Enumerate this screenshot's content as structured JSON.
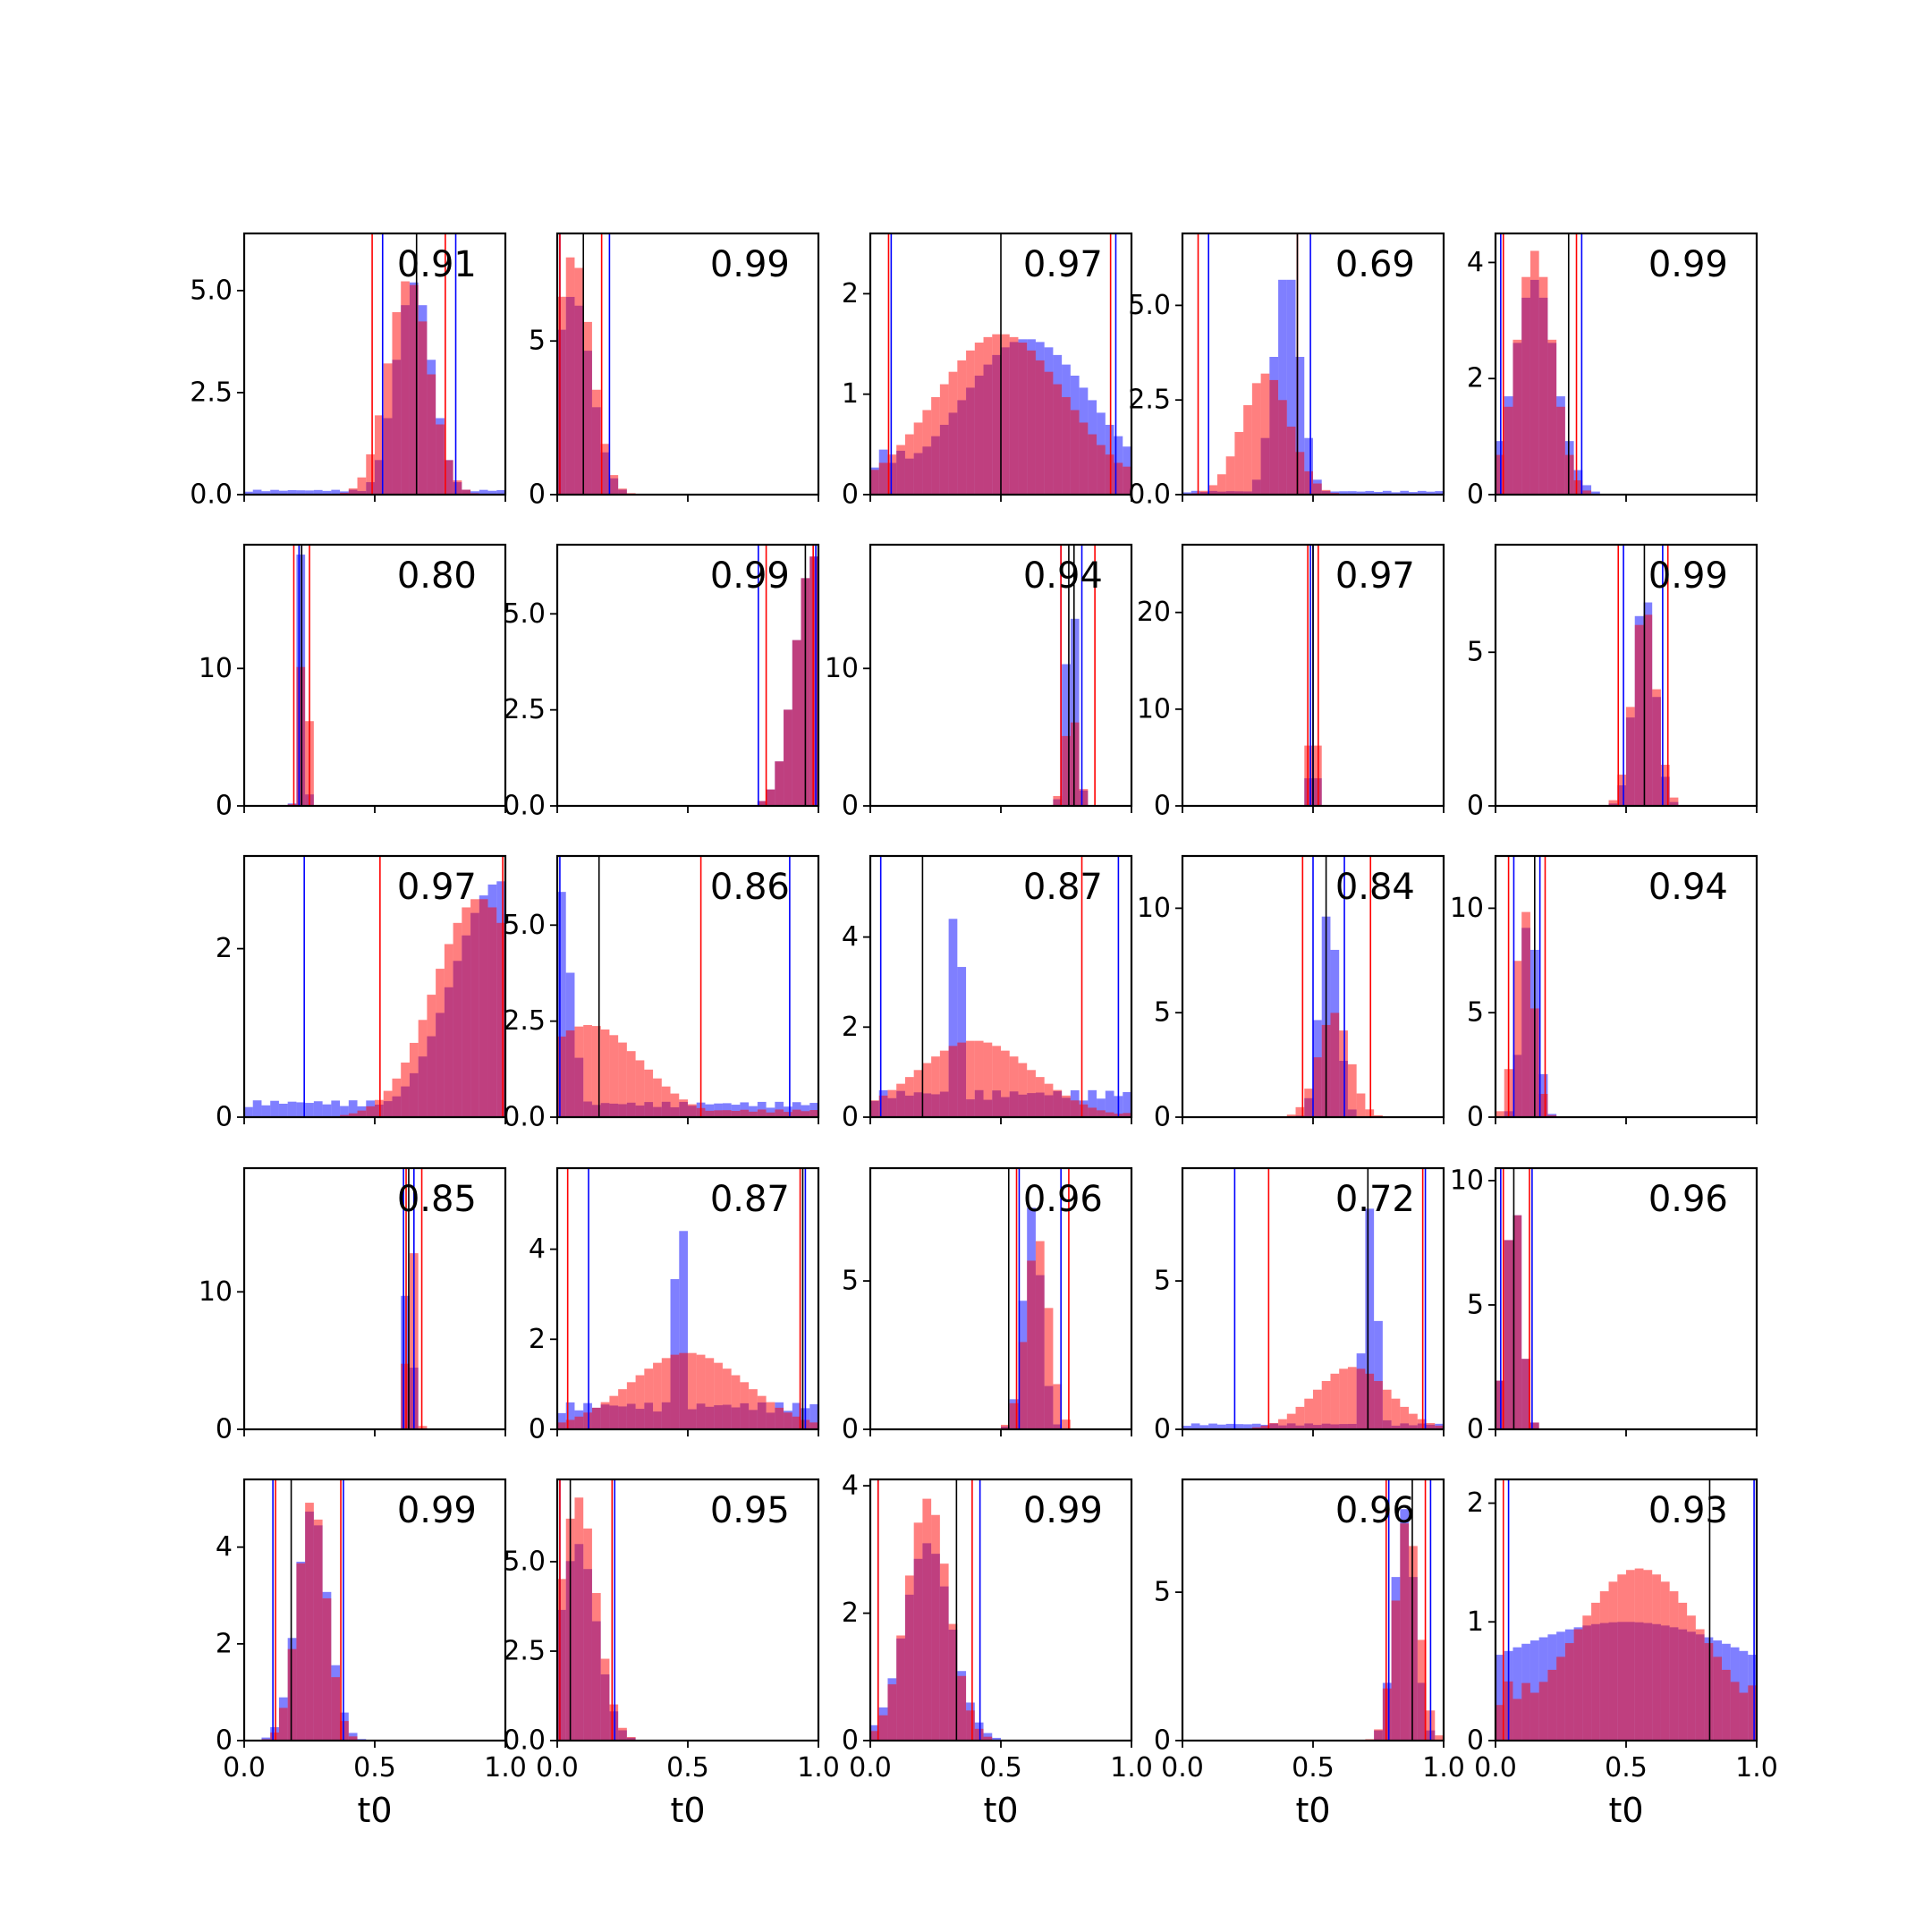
{
  "colors": {
    "blue": "#0000ff",
    "red": "#ff0000",
    "black": "#000000"
  },
  "chart_data": {
    "type": "histogram-grid",
    "rows": 5,
    "cols": 5,
    "xlabel": "t0",
    "x_range": [
      0,
      1
    ],
    "x_tick_labels": [
      "0.0",
      "0.5",
      "1.0"
    ],
    "x_tick_values": [
      0,
      0.5,
      1
    ],
    "grid": false,
    "legend": "none",
    "panels": [
      {
        "label": "0.91",
        "ylim": [
          0,
          6.4
        ],
        "yticks": [
          0,
          2.5,
          5.0
        ],
        "ytick_labels": [
          "0.0",
          "2.5",
          "5.0"
        ],
        "vlines": {
          "blue": [
            0.53,
            0.81
          ],
          "red": [
            0.49,
            0.77
          ],
          "black": [
            0.66
          ]
        },
        "blue": {
          "center": 0.65,
          "spread": 0.07,
          "peak": 5.2,
          "floor": 0.12
        },
        "red": {
          "center": 0.63,
          "spread": 0.08,
          "peak": 5.3,
          "floor": 0.0
        }
      },
      {
        "label": "0.99",
        "ylim": [
          0,
          8.5
        ],
        "yticks": [
          0,
          5
        ],
        "ytick_labels": [
          "0",
          "5"
        ],
        "vlines": {
          "blue": [
            0.01,
            0.2
          ],
          "red": [
            0.01,
            0.17
          ],
          "black": [
            0.1
          ]
        },
        "blue": {
          "center": 0.06,
          "spread": 0.07,
          "peak": 6.5,
          "floor": 0.0
        },
        "red": {
          "center": 0.06,
          "spread": 0.07,
          "peak": 7.8,
          "floor": 0.0
        }
      },
      {
        "label": "0.97",
        "ylim": [
          0,
          2.6
        ],
        "yticks": [
          0,
          1,
          2
        ],
        "ytick_labels": [
          "0",
          "1",
          "2"
        ],
        "vlines": {
          "blue": [
            0.08,
            0.94
          ],
          "red": [
            0.07,
            0.92
          ],
          "black": [
            0.5
          ]
        },
        "blue": {
          "center": 0.6,
          "spread": 0.25,
          "peak": 1.55,
          "floor": 0.45
        },
        "red": {
          "center": 0.5,
          "spread": 0.25,
          "peak": 1.6,
          "floor": 0.3
        }
      },
      {
        "label": "0.69",
        "ylim": [
          0,
          6.9
        ],
        "yticks": [
          0,
          2.5,
          5.0
        ],
        "ytick_labels": [
          "0.0",
          "2.5",
          "5.0"
        ],
        "vlines": {
          "blue": [
            0.1,
            0.49
          ],
          "red": [
            0.06,
            0.44
          ],
          "black": [
            0.44
          ]
        },
        "blue": {
          "center": 0.4,
          "spread": 0.05,
          "peak": 6.0,
          "floor": 0.1
        },
        "red": {
          "center": 0.32,
          "spread": 0.09,
          "peak": 3.2,
          "floor": 0.0
        }
      },
      {
        "label": "0.99",
        "ylim": [
          0,
          4.5
        ],
        "yticks": [
          0,
          2,
          4
        ],
        "ytick_labels": [
          "0",
          "2",
          "4"
        ],
        "vlines": {
          "blue": [
            0.02,
            0.33
          ],
          "red": [
            0.03,
            0.31
          ],
          "black": [
            0.28
          ]
        },
        "blue": {
          "center": 0.15,
          "spread": 0.08,
          "peak": 3.7,
          "floor": 0.0
        },
        "red": {
          "center": 0.15,
          "spread": 0.07,
          "peak": 4.2,
          "floor": 0.0
        }
      },
      {
        "label": "0.80",
        "ylim": [
          0,
          19
        ],
        "yticks": [
          0,
          10
        ],
        "ytick_labels": [
          "0",
          "10"
        ],
        "vlines": {
          "blue": [
            0.21,
            0.22
          ],
          "red": [
            0.19,
            0.25
          ],
          "black": [
            0.22
          ]
        },
        "blue": {
          "center": 0.22,
          "spread": 0.012,
          "peak": 19,
          "floor": 0.0
        },
        "red": {
          "center": 0.23,
          "spread": 0.015,
          "peak": 15,
          "floor": 0.0
        }
      },
      {
        "label": "0.99",
        "ylim": [
          0,
          6.8
        ],
        "yticks": [
          0,
          2.5,
          5.0
        ],
        "ytick_labels": [
          "0.0",
          "2.5",
          "5.0"
        ],
        "vlines": {
          "blue": [
            0.77,
            0.99
          ],
          "red": [
            0.8,
            0.98
          ],
          "black": [
            0.95
          ]
        },
        "blue": {
          "center": 0.98,
          "spread": 0.07,
          "peak": 6.5,
          "floor": 0.0
        },
        "red": {
          "center": 0.98,
          "spread": 0.07,
          "peak": 6.5,
          "floor": 0.0
        }
      },
      {
        "label": "0.94",
        "ylim": [
          0,
          19
        ],
        "yticks": [
          0,
          10
        ],
        "ytick_labels": [
          "0",
          "10"
        ],
        "vlines": {
          "blue": [
            0.73,
            0.81
          ],
          "red": [
            0.73,
            0.86
          ],
          "black": [
            0.76,
            0.78
          ]
        },
        "blue": {
          "center": 0.77,
          "spread": 0.02,
          "peak": 17,
          "floor": 0.0
        },
        "red": {
          "center": 0.77,
          "spread": 0.025,
          "peak": 7,
          "floor": 0.0
        }
      },
      {
        "label": "0.97",
        "ylim": [
          0,
          27
        ],
        "yticks": [
          0,
          10,
          20
        ],
        "ytick_labels": [
          "0",
          "10",
          "20"
        ],
        "vlines": {
          "blue": [
            0.49,
            0.5
          ],
          "red": [
            0.48,
            0.52
          ],
          "black": [
            0.5
          ]
        },
        "blue": {
          "center": 0.5,
          "spread": 0.008,
          "peak": 25,
          "floor": 0.0
        },
        "red": {
          "center": 0.5,
          "spread": 0.01,
          "peak": 25,
          "floor": 0.0
        }
      },
      {
        "label": "0.99",
        "ylim": [
          0,
          8.5
        ],
        "yticks": [
          0,
          5
        ],
        "ytick_labels": [
          "0",
          "5"
        ],
        "vlines": {
          "blue": [
            0.49,
            0.64
          ],
          "red": [
            0.47,
            0.66
          ],
          "black": [
            0.57
          ]
        },
        "blue": {
          "center": 0.57,
          "spread": 0.04,
          "peak": 7.0,
          "floor": 0.0
        },
        "red": {
          "center": 0.57,
          "spread": 0.045,
          "peak": 6.5,
          "floor": 0.0
        }
      },
      {
        "label": "0.97",
        "ylim": [
          0,
          3.1
        ],
        "yticks": [
          0,
          2
        ],
        "ytick_labels": [
          "0",
          "2"
        ],
        "vlines": {
          "blue": [
            0.23,
            1.0
          ],
          "red": [
            0.52,
            0.99
          ],
          "black": [
            1.0
          ]
        },
        "blue": {
          "center": 0.98,
          "spread": 0.18,
          "peak": 2.8,
          "floor": 0.2
        },
        "red": {
          "center": 0.9,
          "spread": 0.17,
          "peak": 2.6,
          "floor": 0.0
        }
      },
      {
        "label": "0.86",
        "ylim": [
          0,
          6.8
        ],
        "yticks": [
          0,
          2.5,
          5.0
        ],
        "ytick_labels": [
          "0.0",
          "2.5",
          "5.0"
        ],
        "vlines": {
          "blue": [
            0.01,
            0.89
          ],
          "red": [
            0.55
          ],
          "black": [
            0.16
          ]
        },
        "blue": {
          "center": 0.0,
          "spread": 0.05,
          "peak": 6.2,
          "floor": 0.4
        },
        "red": {
          "center": 0.12,
          "spread": 0.2,
          "peak": 2.4,
          "floor": 0.2
        }
      },
      {
        "label": "0.87",
        "ylim": [
          0,
          5.8
        ],
        "yticks": [
          0,
          2,
          4
        ],
        "ytick_labels": [
          "0",
          "2",
          "4"
        ],
        "vlines": {
          "blue": [
            0.04,
            0.95
          ],
          "red": [
            0.81
          ],
          "black": [
            0.2
          ]
        },
        "blue": {
          "center": 0.33,
          "spread": 0.02,
          "peak": 5.5,
          "floor": 0.6
        },
        "red": {
          "center": 0.4,
          "spread": 0.22,
          "peak": 1.7,
          "floor": 0.1
        }
      },
      {
        "label": "0.84",
        "ylim": [
          0,
          12.5
        ],
        "yticks": [
          0,
          5,
          10
        ],
        "ytick_labels": [
          "0",
          "5",
          "10"
        ],
        "vlines": {
          "blue": [
            0.5,
            0.62
          ],
          "red": [
            0.46,
            0.72
          ],
          "black": [
            0.55
          ]
        },
        "blue": {
          "center": 0.56,
          "spread": 0.035,
          "peak": 10,
          "floor": 0.0
        },
        "red": {
          "center": 0.58,
          "spread": 0.06,
          "peak": 5,
          "floor": 0.0
        }
      },
      {
        "label": "0.94",
        "ylim": [
          0,
          12.5
        ],
        "yticks": [
          0,
          5,
          10
        ],
        "ytick_labels": [
          "0",
          "5",
          "10"
        ],
        "vlines": {
          "blue": [
            0.07,
            0.17
          ],
          "red": [
            0.05,
            0.19
          ],
          "black": [
            0.15
          ]
        },
        "blue": {
          "center": 0.13,
          "spread": 0.03,
          "peak": 10,
          "floor": 0.0
        },
        "red": {
          "center": 0.11,
          "spread": 0.035,
          "peak": 10,
          "floor": 0.0
        }
      },
      {
        "label": "0.85",
        "ylim": [
          0,
          19
        ],
        "yticks": [
          0,
          10
        ],
        "ytick_labels": [
          "0",
          "10"
        ],
        "vlines": {
          "blue": [
            0.61,
            0.65
          ],
          "red": [
            0.62,
            0.68
          ],
          "black": [
            0.63
          ]
        },
        "blue": {
          "center": 0.63,
          "spread": 0.012,
          "peak": 18,
          "floor": 0.0
        },
        "red": {
          "center": 0.64,
          "spread": 0.015,
          "peak": 16,
          "floor": 0.0
        }
      },
      {
        "label": "0.87",
        "ylim": [
          0,
          5.8
        ],
        "yticks": [
          0,
          2,
          4
        ],
        "ytick_labels": [
          "0",
          "2",
          "4"
        ],
        "vlines": {
          "blue": [
            0.12,
            0.95
          ],
          "red": [
            0.04,
            0.93
          ],
          "black": [
            0.94
          ]
        },
        "blue": {
          "center": 0.47,
          "spread": 0.02,
          "peak": 5.5,
          "floor": 0.6
        },
        "red": {
          "center": 0.5,
          "spread": 0.22,
          "peak": 1.7,
          "floor": 0.1
        }
      },
      {
        "label": "0.96",
        "ylim": [
          0,
          8.8
        ],
        "yticks": [
          0,
          5
        ],
        "ytick_labels": [
          "0",
          "5"
        ],
        "vlines": {
          "blue": [
            0.57,
            0.73
          ],
          "red": [
            0.56,
            0.76
          ],
          "black": [
            0.53
          ]
        },
        "blue": {
          "center": 0.62,
          "spread": 0.035,
          "peak": 7.5,
          "floor": 0.0
        },
        "red": {
          "center": 0.64,
          "spread": 0.045,
          "peak": 6.5,
          "floor": 0.0
        }
      },
      {
        "label": "0.72",
        "ylim": [
          0,
          8.8
        ],
        "yticks": [
          0,
          5
        ],
        "ytick_labels": [
          "0",
          "5"
        ],
        "vlines": {
          "blue": [
            0.2,
            0.93
          ],
          "red": [
            0.33,
            0.92
          ],
          "black": [
            0.71
          ]
        },
        "blue": {
          "center": 0.72,
          "spread": 0.025,
          "peak": 7.5,
          "floor": 0.2
        },
        "red": {
          "center": 0.65,
          "spread": 0.14,
          "peak": 2.1,
          "floor": 0.0
        }
      },
      {
        "label": "0.96",
        "ylim": [
          0,
          10.5
        ],
        "yticks": [
          0,
          5,
          10
        ],
        "ytick_labels": [
          "0",
          "5",
          "10"
        ],
        "vlines": {
          "blue": [
            0.02,
            0.14
          ],
          "red": [
            0.03,
            0.13
          ],
          "black": [
            0.07
          ]
        },
        "blue": {
          "center": 0.07,
          "spread": 0.03,
          "peak": 9.5,
          "floor": 0.0
        },
        "red": {
          "center": 0.07,
          "spread": 0.03,
          "peak": 9.5,
          "floor": 0.0
        }
      },
      {
        "label": "0.99",
        "ylim": [
          0,
          5.4
        ],
        "yticks": [
          0,
          2,
          4
        ],
        "ytick_labels": [
          "0",
          "2",
          "4"
        ],
        "vlines": {
          "blue": [
            0.11,
            0.38
          ],
          "red": [
            0.12,
            0.37
          ],
          "black": [
            0.18
          ]
        },
        "blue": {
          "center": 0.26,
          "spread": 0.06,
          "peak": 4.8,
          "floor": 0.0
        },
        "red": {
          "center": 0.26,
          "spread": 0.055,
          "peak": 5.0,
          "floor": 0.0
        }
      },
      {
        "label": "0.95",
        "ylim": [
          0,
          7.3
        ],
        "yticks": [
          0,
          2.5,
          5.0
        ],
        "ytick_labels": [
          "0.0",
          "2.5",
          "5.0"
        ],
        "vlines": {
          "blue": [
            0.01,
            0.22
          ],
          "red": [
            0.01,
            0.21
          ],
          "black": [
            0.05
          ]
        },
        "blue": {
          "center": 0.08,
          "spread": 0.07,
          "peak": 5.5,
          "floor": 0.0
        },
        "red": {
          "center": 0.08,
          "spread": 0.07,
          "peak": 6.8,
          "floor": 0.0
        }
      },
      {
        "label": "0.99",
        "ylim": [
          0,
          4.1
        ],
        "yticks": [
          0,
          2,
          4
        ],
        "ytick_labels": [
          "0",
          "2",
          "4"
        ],
        "vlines": {
          "blue": [
            0.03,
            0.42
          ],
          "red": [
            0.03,
            0.39
          ],
          "black": [
            0.33
          ]
        },
        "blue": {
          "center": 0.22,
          "spread": 0.09,
          "peak": 3.1,
          "floor": 0.0
        },
        "red": {
          "center": 0.22,
          "spread": 0.08,
          "peak": 3.8,
          "floor": 0.0
        }
      },
      {
        "label": "0.96",
        "ylim": [
          0,
          8.8
        ],
        "yticks": [
          0,
          5
        ],
        "ytick_labels": [
          "0",
          "5"
        ],
        "vlines": {
          "blue": [
            0.79,
            0.95
          ],
          "red": [
            0.78,
            0.93
          ],
          "black": [
            0.88
          ]
        },
        "blue": {
          "center": 0.85,
          "spread": 0.04,
          "peak": 7.8,
          "floor": 0.0
        },
        "red": {
          "center": 0.86,
          "spread": 0.045,
          "peak": 7.5,
          "floor": 0.0
        }
      },
      {
        "label": "0.93",
        "ylim": [
          0,
          2.2
        ],
        "yticks": [
          0,
          1,
          2
        ],
        "ytick_labels": [
          "0",
          "1",
          "2"
        ],
        "vlines": {
          "blue": [
            0.05,
            0.99
          ],
          "red": [
            0.03
          ],
          "black": [
            0.82
          ]
        },
        "blue": {
          "center": 0.5,
          "spread": 0.6,
          "peak": 1.0,
          "floor": 0.6
        },
        "red": {
          "center": 0.55,
          "spread": 0.25,
          "peak": 1.45,
          "floor": 0.5
        }
      }
    ]
  }
}
